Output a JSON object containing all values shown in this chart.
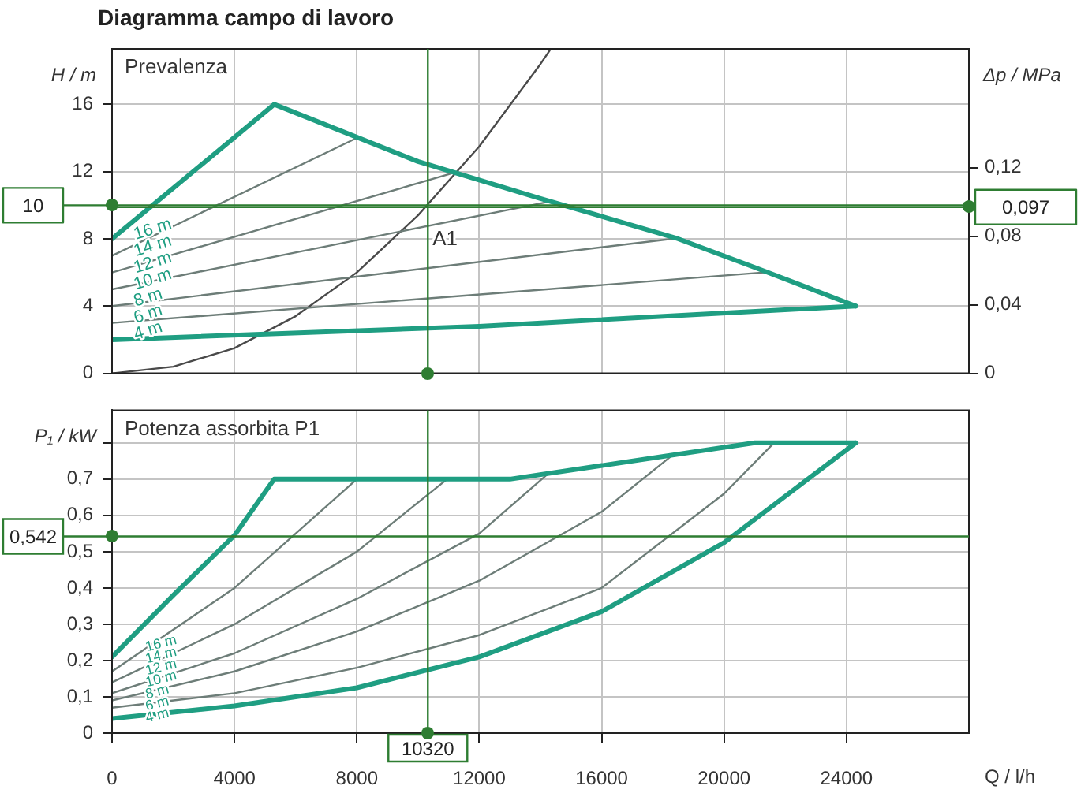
{
  "chart_data": [
    {
      "type": "line",
      "title": "Diagramma campo di lavoro",
      "subtitle": "Prevalenza",
      "ylabel": "H / m",
      "y2label": "Δp / MPa",
      "xlim": [
        0,
        28000
      ],
      "xticks": [
        0,
        4000,
        8000,
        12000,
        16000,
        20000,
        24000
      ],
      "ylim": [
        0,
        19.3
      ],
      "yticks": [
        0,
        4,
        8,
        12,
        16
      ],
      "y2lim": [
        0,
        0.1893
      ],
      "y2ticks": [
        0,
        {
          "value": 0.04,
          "label": "0,04"
        },
        {
          "value": 0.08,
          "label": "0,08"
        },
        {
          "value": 0.12,
          "label": "0,12"
        }
      ],
      "tick_labels": "y",
      "grid": true,
      "series": [
        {
          "color": "#1f9e82",
          "x": [
            0,
            5300,
            10000,
            14000,
            18500,
            21000,
            24300
          ],
          "values": [
            8,
            16,
            12.6,
            10.4,
            8,
            6.3,
            4
          ]
        },
        {
          "color": "#1f9e82",
          "x": [
            0,
            12000,
            24300
          ],
          "values": [
            2,
            2.8,
            4
          ]
        },
        {
          "color": "#6d7d78",
          "x": [
            0,
            8000
          ],
          "values": [
            7,
            14
          ]
        },
        {
          "color": "#6d7d78",
          "x": [
            0,
            11300
          ],
          "values": [
            6,
            12
          ]
        },
        {
          "color": "#6d7d78",
          "x": [
            0,
            14250
          ],
          "values": [
            5,
            10.2
          ]
        },
        {
          "color": "#6d7d78",
          "x": [
            0,
            18300
          ],
          "values": [
            4,
            8
          ]
        },
        {
          "color": "#6d7d78",
          "x": [
            0,
            21300
          ],
          "values": [
            3,
            6
          ]
        },
        {
          "color": "#4a4a4a",
          "x": [
            0,
            2000,
            4000,
            6000,
            8000,
            10000,
            12000,
            14000,
            14300
          ],
          "values": [
            0,
            0.4,
            1.5,
            3.4,
            6,
            9.4,
            13.5,
            18.4,
            19.2
          ]
        }
      ],
      "ref_lines": [
        {
          "axis": "y",
          "value": 10,
          "label": "10",
          "color": "#2e7d32"
        },
        {
          "axis": "y2",
          "value": 0.097,
          "label": "0,097",
          "color": "#2e7d32"
        },
        {
          "axis": "x",
          "value": 10320,
          "label": null,
          "color": "#2e7d32"
        }
      ],
      "annotations": [
        "16 m",
        "14 m",
        "12 m",
        "10 m",
        "8 m",
        "6 m",
        "4 m",
        {
          "text": "A1",
          "x": 10320,
          "y": 10
        }
      ]
    },
    {
      "type": "line",
      "subtitle": "Potenza assorbita P1",
      "ylabel": "P₁ / kW",
      "xlabel": "Q / l/h",
      "xlim": [
        0,
        28000
      ],
      "xticks": [
        0,
        4000,
        8000,
        12000,
        16000,
        20000,
        24000
      ],
      "ylim": [
        0,
        0.89
      ],
      "yticks": [
        0,
        {
          "value": 0.1,
          "label": "0,1"
        },
        {
          "value": 0.2,
          "label": "0,2"
        },
        {
          "value": 0.3,
          "label": "0,3"
        },
        {
          "value": 0.4,
          "label": "0,4"
        },
        {
          "value": 0.5,
          "label": "0,5"
        },
        {
          "value": 0.6,
          "label": "0,6"
        },
        {
          "value": 0.7,
          "label": "0,7"
        },
        {
          "value": 0.8,
          "label": null
        }
      ],
      "grid": true,
      "series": [
        {
          "color": "#1f9e82",
          "x": [
            0,
            2000,
            4000,
            5300,
            13000,
            21000,
            24300
          ],
          "values": [
            0.21,
            0.38,
            0.545,
            0.7,
            0.7,
            0.8,
            0.8
          ]
        },
        {
          "color": "#1f9e82",
          "x": [
            0,
            4000,
            8000,
            12000,
            16000,
            20000,
            24300
          ],
          "values": [
            0.04,
            0.075,
            0.125,
            0.21,
            0.335,
            0.525,
            0.8
          ]
        },
        {
          "color": "#6d7d78",
          "x": [
            0,
            4000,
            8000
          ],
          "values": [
            0.17,
            0.4,
            0.7
          ]
        },
        {
          "color": "#6d7d78",
          "x": [
            0,
            4000,
            8000,
            10950
          ],
          "values": [
            0.14,
            0.3,
            0.5,
            0.7
          ]
        },
        {
          "color": "#6d7d78",
          "x": [
            0,
            4000,
            8000,
            12000,
            14250
          ],
          "values": [
            0.11,
            0.22,
            0.37,
            0.55,
            0.715
          ]
        },
        {
          "color": "#6d7d78",
          "x": [
            0,
            4000,
            8000,
            12000,
            16000,
            18370
          ],
          "values": [
            0.09,
            0.17,
            0.28,
            0.42,
            0.61,
            0.77
          ]
        },
        {
          "color": "#6d7d78",
          "x": [
            0,
            4000,
            8000,
            12000,
            16000,
            20000,
            21630
          ],
          "values": [
            0.07,
            0.11,
            0.18,
            0.27,
            0.4,
            0.66,
            0.8
          ]
        }
      ],
      "ref_lines": [
        {
          "axis": "y",
          "value": 0.542,
          "label": "0,542",
          "color": "#2e7d32"
        },
        {
          "axis": "x",
          "value": 10320,
          "label": "10320",
          "color": "#2e7d32"
        }
      ],
      "annotations": [
        "16 m",
        "14 m",
        "12 m",
        "10 m",
        "8 m",
        "6 m",
        "4 m"
      ]
    }
  ]
}
